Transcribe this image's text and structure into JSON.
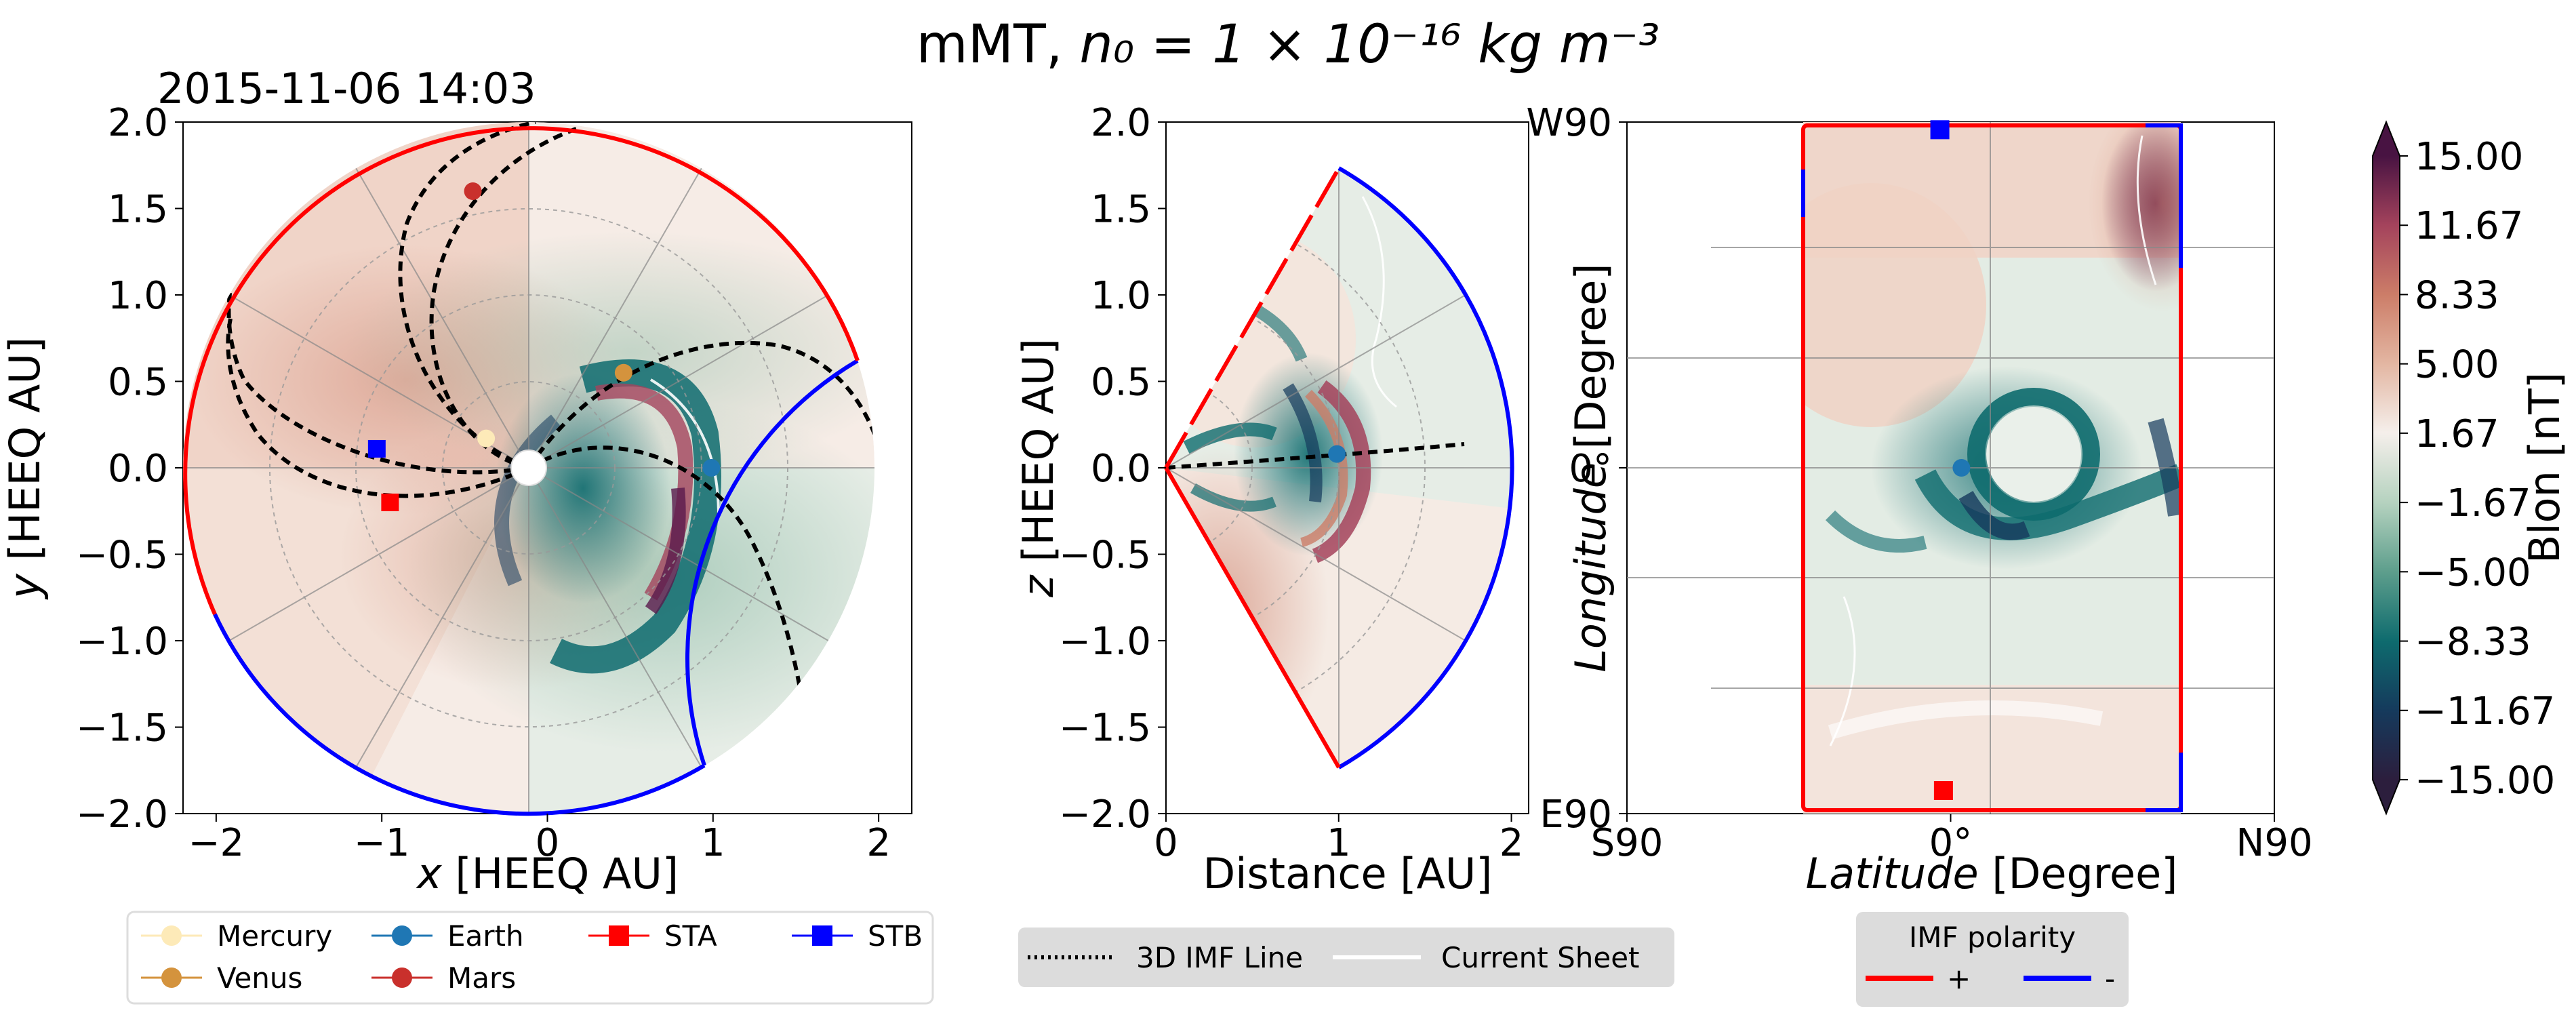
{
  "figure": {
    "title_prefix": "mMT,  ",
    "title_math": "n₀ = 1 × 10⁻¹⁶ kg m⁻³",
    "timestamp": "2015-11-06 14:03"
  },
  "chart_data": [
    {
      "type": "scatter",
      "panel": "equatorial-plane",
      "xlabel_var": "x",
      "xlabel_unit": " [HEEQ AU]",
      "ylabel_var": "y",
      "ylabel_unit": " [HEEQ AU]",
      "xlim": [
        -2.2,
        2.2
      ],
      "ylim": [
        -2.0,
        2.0
      ],
      "xticks": [
        "−2",
        "−1",
        "0",
        "1",
        "2"
      ],
      "yticks": [
        "2.0",
        "1.5",
        "1.0",
        "0.5",
        "0.0",
        "−0.5",
        "−1.0",
        "−1.5",
        "−2.0"
      ],
      "grid": true,
      "series": [
        {
          "name": "Mercury",
          "color": "#fdeab8",
          "marker": "circle",
          "x": -0.37,
          "y": 0.17
        },
        {
          "name": "Venus",
          "color": "#d4933d",
          "marker": "circle",
          "x": 0.46,
          "y": 0.55
        },
        {
          "name": "Mars",
          "color": "#c9302c",
          "marker": "circle",
          "x": -0.45,
          "y": 1.6
        },
        {
          "name": "Earth",
          "color": "#1f77b4",
          "marker": "circle",
          "x": 0.99,
          "y": 0.0
        },
        {
          "name": "STA",
          "color": "#ff0000",
          "marker": "square",
          "x": -0.95,
          "y": -0.2
        },
        {
          "name": "STB",
          "color": "#0000ff",
          "marker": "square",
          "x": -1.03,
          "y": 0.11
        }
      ]
    },
    {
      "type": "scatter",
      "panel": "meridional-plane",
      "xlabel": "Distance [AU]",
      "ylabel_var": "z",
      "ylabel_unit": " [HEEQ AU]",
      "xlim": [
        0.0,
        2.1
      ],
      "ylim": [
        -2.0,
        2.0
      ],
      "xticks": [
        "0",
        "1",
        "2"
      ],
      "yticks": [
        "2.0",
        "1.5",
        "1.0",
        "0.5",
        "0.0",
        "−0.5",
        "−1.0",
        "−1.5",
        "−2.0"
      ],
      "series": [
        {
          "name": "Earth",
          "color": "#1f77b4",
          "marker": "circle",
          "x": 0.99,
          "y": 0.08
        }
      ]
    },
    {
      "type": "scatter",
      "panel": "inner-boundary-map",
      "xlabel_var": "Latitude",
      "xlabel_unit": " [Degree]",
      "ylabel_var": "Longitude",
      "ylabel_unit": " [Degree]",
      "xlim": [
        -90,
        90
      ],
      "ylim": [
        -90,
        90
      ],
      "xticks": [
        "S90",
        "0°",
        "N90"
      ],
      "yticks": [
        "W90",
        "0°",
        "E90"
      ],
      "series": [
        {
          "name": "STB",
          "color": "#0000ff",
          "marker": "square",
          "lat": -3,
          "lon": 88
        },
        {
          "name": "Earth",
          "color": "#1f77b4",
          "marker": "circle",
          "lat": 3,
          "lon": 0
        },
        {
          "name": "STA",
          "color": "#ff0000",
          "marker": "square",
          "lat": -2,
          "lon": -84
        }
      ]
    }
  ],
  "colorbar": {
    "label": "Blon  [nT]",
    "range": [
      -15.0,
      15.0
    ],
    "ticks": [
      "15.00",
      "11.67",
      "8.33",
      "5.00",
      "1.67",
      "−1.67",
      "−5.00",
      "−8.33",
      "−11.67",
      "−15.00"
    ],
    "colors": [
      "#2c1e3d",
      "#153a5c",
      "#0e6b6e",
      "#5d9e8c",
      "#b5d2bf",
      "#f5efeb",
      "#e3b6a2",
      "#cc7d68",
      "#a4435c",
      "#481342"
    ]
  },
  "legends": {
    "bodies": [
      {
        "label": "Mercury",
        "color": "#fdeab8",
        "marker": "circle"
      },
      {
        "label": "Venus",
        "color": "#d4933d",
        "marker": "circle"
      },
      {
        "label": "Earth",
        "color": "#1f77b4",
        "marker": "circle"
      },
      {
        "label": "Mars",
        "color": "#c9302c",
        "marker": "circle"
      },
      {
        "label": "STA",
        "color": "#ff0000",
        "marker": "square"
      },
      {
        "label": "STB",
        "color": "#0000ff",
        "marker": "square"
      }
    ],
    "lines": [
      {
        "label": "3D IMF Line",
        "style": "dotted"
      },
      {
        "label": "Current Sheet",
        "style": "solid-white"
      }
    ],
    "polarity": {
      "title": "IMF polarity",
      "items": [
        {
          "label": "+",
          "color": "#ff0000"
        },
        {
          "label": "-",
          "color": "#0000ff"
        }
      ]
    }
  }
}
